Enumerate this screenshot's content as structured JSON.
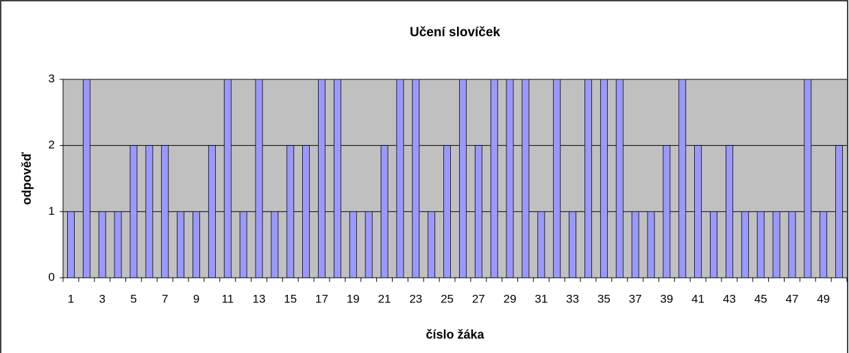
{
  "chart_data": {
    "type": "bar",
    "title": "Učení slovíček",
    "x_label": "číslo žáka",
    "y_label": "odpověď",
    "categories": [
      "1",
      null,
      "3",
      null,
      "5",
      null,
      "7",
      null,
      "9",
      null,
      "11",
      null,
      "13",
      null,
      "15",
      null,
      "17",
      null,
      "19",
      null,
      "21",
      null,
      "23",
      null,
      "25",
      null,
      "27",
      null,
      "29",
      null,
      "31",
      null,
      "33",
      null,
      "35",
      null,
      "37",
      null,
      "39",
      null,
      "41",
      null,
      "43",
      null,
      "45",
      null,
      "47",
      null,
      "49",
      null
    ],
    "values": [
      1,
      3,
      1,
      1,
      2,
      2,
      2,
      1,
      1,
      2,
      3,
      1,
      3,
      1,
      2,
      2,
      3,
      3,
      1,
      1,
      2,
      3,
      3,
      1,
      2,
      3,
      2,
      3,
      3,
      3,
      1,
      3,
      1,
      3,
      3,
      3,
      1,
      1,
      2,
      3,
      2,
      1,
      2,
      1,
      1,
      1,
      1,
      3,
      1,
      2
    ],
    "color": "#9999ff",
    "ylim": [
      0,
      3
    ],
    "yticks": [
      0,
      1,
      2,
      3
    ],
    "grid": true
  }
}
